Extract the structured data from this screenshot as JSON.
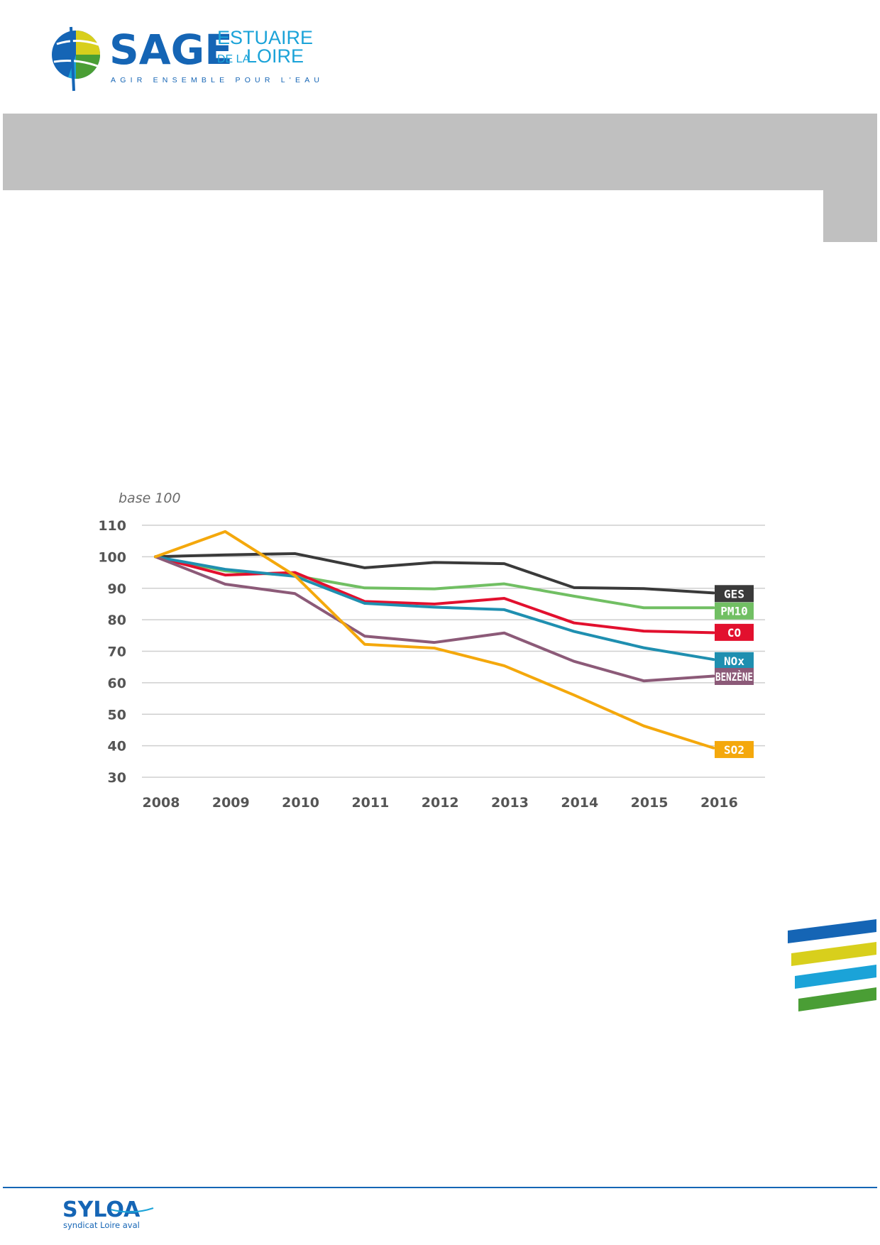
{
  "header": {
    "logo": {
      "brand": "SAGE",
      "estuaire": "ESTUAIRE",
      "de_la": "DE LA",
      "loire": "LOIRE",
      "tagline": "AGIR ENSEMBLE POUR L'EAU",
      "colors": {
        "blue": "#1565b5",
        "yellow": "#d8cf1c",
        "cyan": "#1ba3d8",
        "green": "#4a9e35"
      }
    }
  },
  "decor": {
    "stripe_colors": [
      "#1565b5",
      "#d8cf1c",
      "#1ba3d8",
      "#4a9e35"
    ]
  },
  "footer": {
    "logo": {
      "name": "SYLOA",
      "subtitle": "syndicat Loire aval"
    }
  },
  "chart_data": {
    "type": "line",
    "title": "",
    "xlabel": "",
    "ylabel": "base 100",
    "ylim": [
      30,
      110
    ],
    "yticks": [
      110,
      100,
      90,
      80,
      70,
      60,
      50,
      40,
      30
    ],
    "grid": true,
    "legend": "end-of-line labels",
    "x": [
      "2008",
      "2009",
      "2010",
      "2011",
      "2012",
      "2013",
      "2014",
      "2015",
      "2016"
    ],
    "series": [
      {
        "name": "GES",
        "color": "#3a3a3a",
        "values": [
          100,
          100.6,
          101,
          96.5,
          98.2,
          97.8,
          90.2,
          89.9,
          88.5
        ]
      },
      {
        "name": "PM10",
        "color": "#71bf63",
        "values": [
          100,
          95.5,
          94,
          90.1,
          89.8,
          91.4,
          87.5,
          83.8,
          83.8
        ]
      },
      {
        "name": "CO",
        "color": "#e2102e",
        "values": [
          100,
          94.2,
          95,
          85.8,
          85,
          86.8,
          79,
          76.4,
          75.9
        ]
      },
      {
        "name": "NOx",
        "color": "#1f8fb0",
        "values": [
          100,
          96,
          93.8,
          85.2,
          84,
          83.2,
          76.3,
          71.1,
          67.4
        ]
      },
      {
        "name": "BENZÈNE",
        "color": "#8c5a78",
        "values": [
          100,
          91.3,
          88.3,
          74.8,
          72.8,
          75.8,
          66.8,
          60.6,
          62.1
        ]
      },
      {
        "name": "SO2",
        "color": "#f4a80c",
        "values": [
          100,
          108,
          94,
          72.2,
          71,
          65.4,
          56.1,
          46.3,
          39.3
        ]
      }
    ],
    "end_labels": [
      {
        "series": "GES",
        "text": "GES",
        "value": 88.3
      },
      {
        "series": "PM10",
        "text": "PM10",
        "value": 82.8
      },
      {
        "series": "CO",
        "text": "CO",
        "value": 76
      },
      {
        "series": "NOx",
        "text": "NOx",
        "value": 67
      },
      {
        "series": "BENZÈNE",
        "text": "BENZÈNE",
        "value": 62
      },
      {
        "series": "SO2",
        "text": "SO2",
        "value": 38.8
      }
    ]
  }
}
